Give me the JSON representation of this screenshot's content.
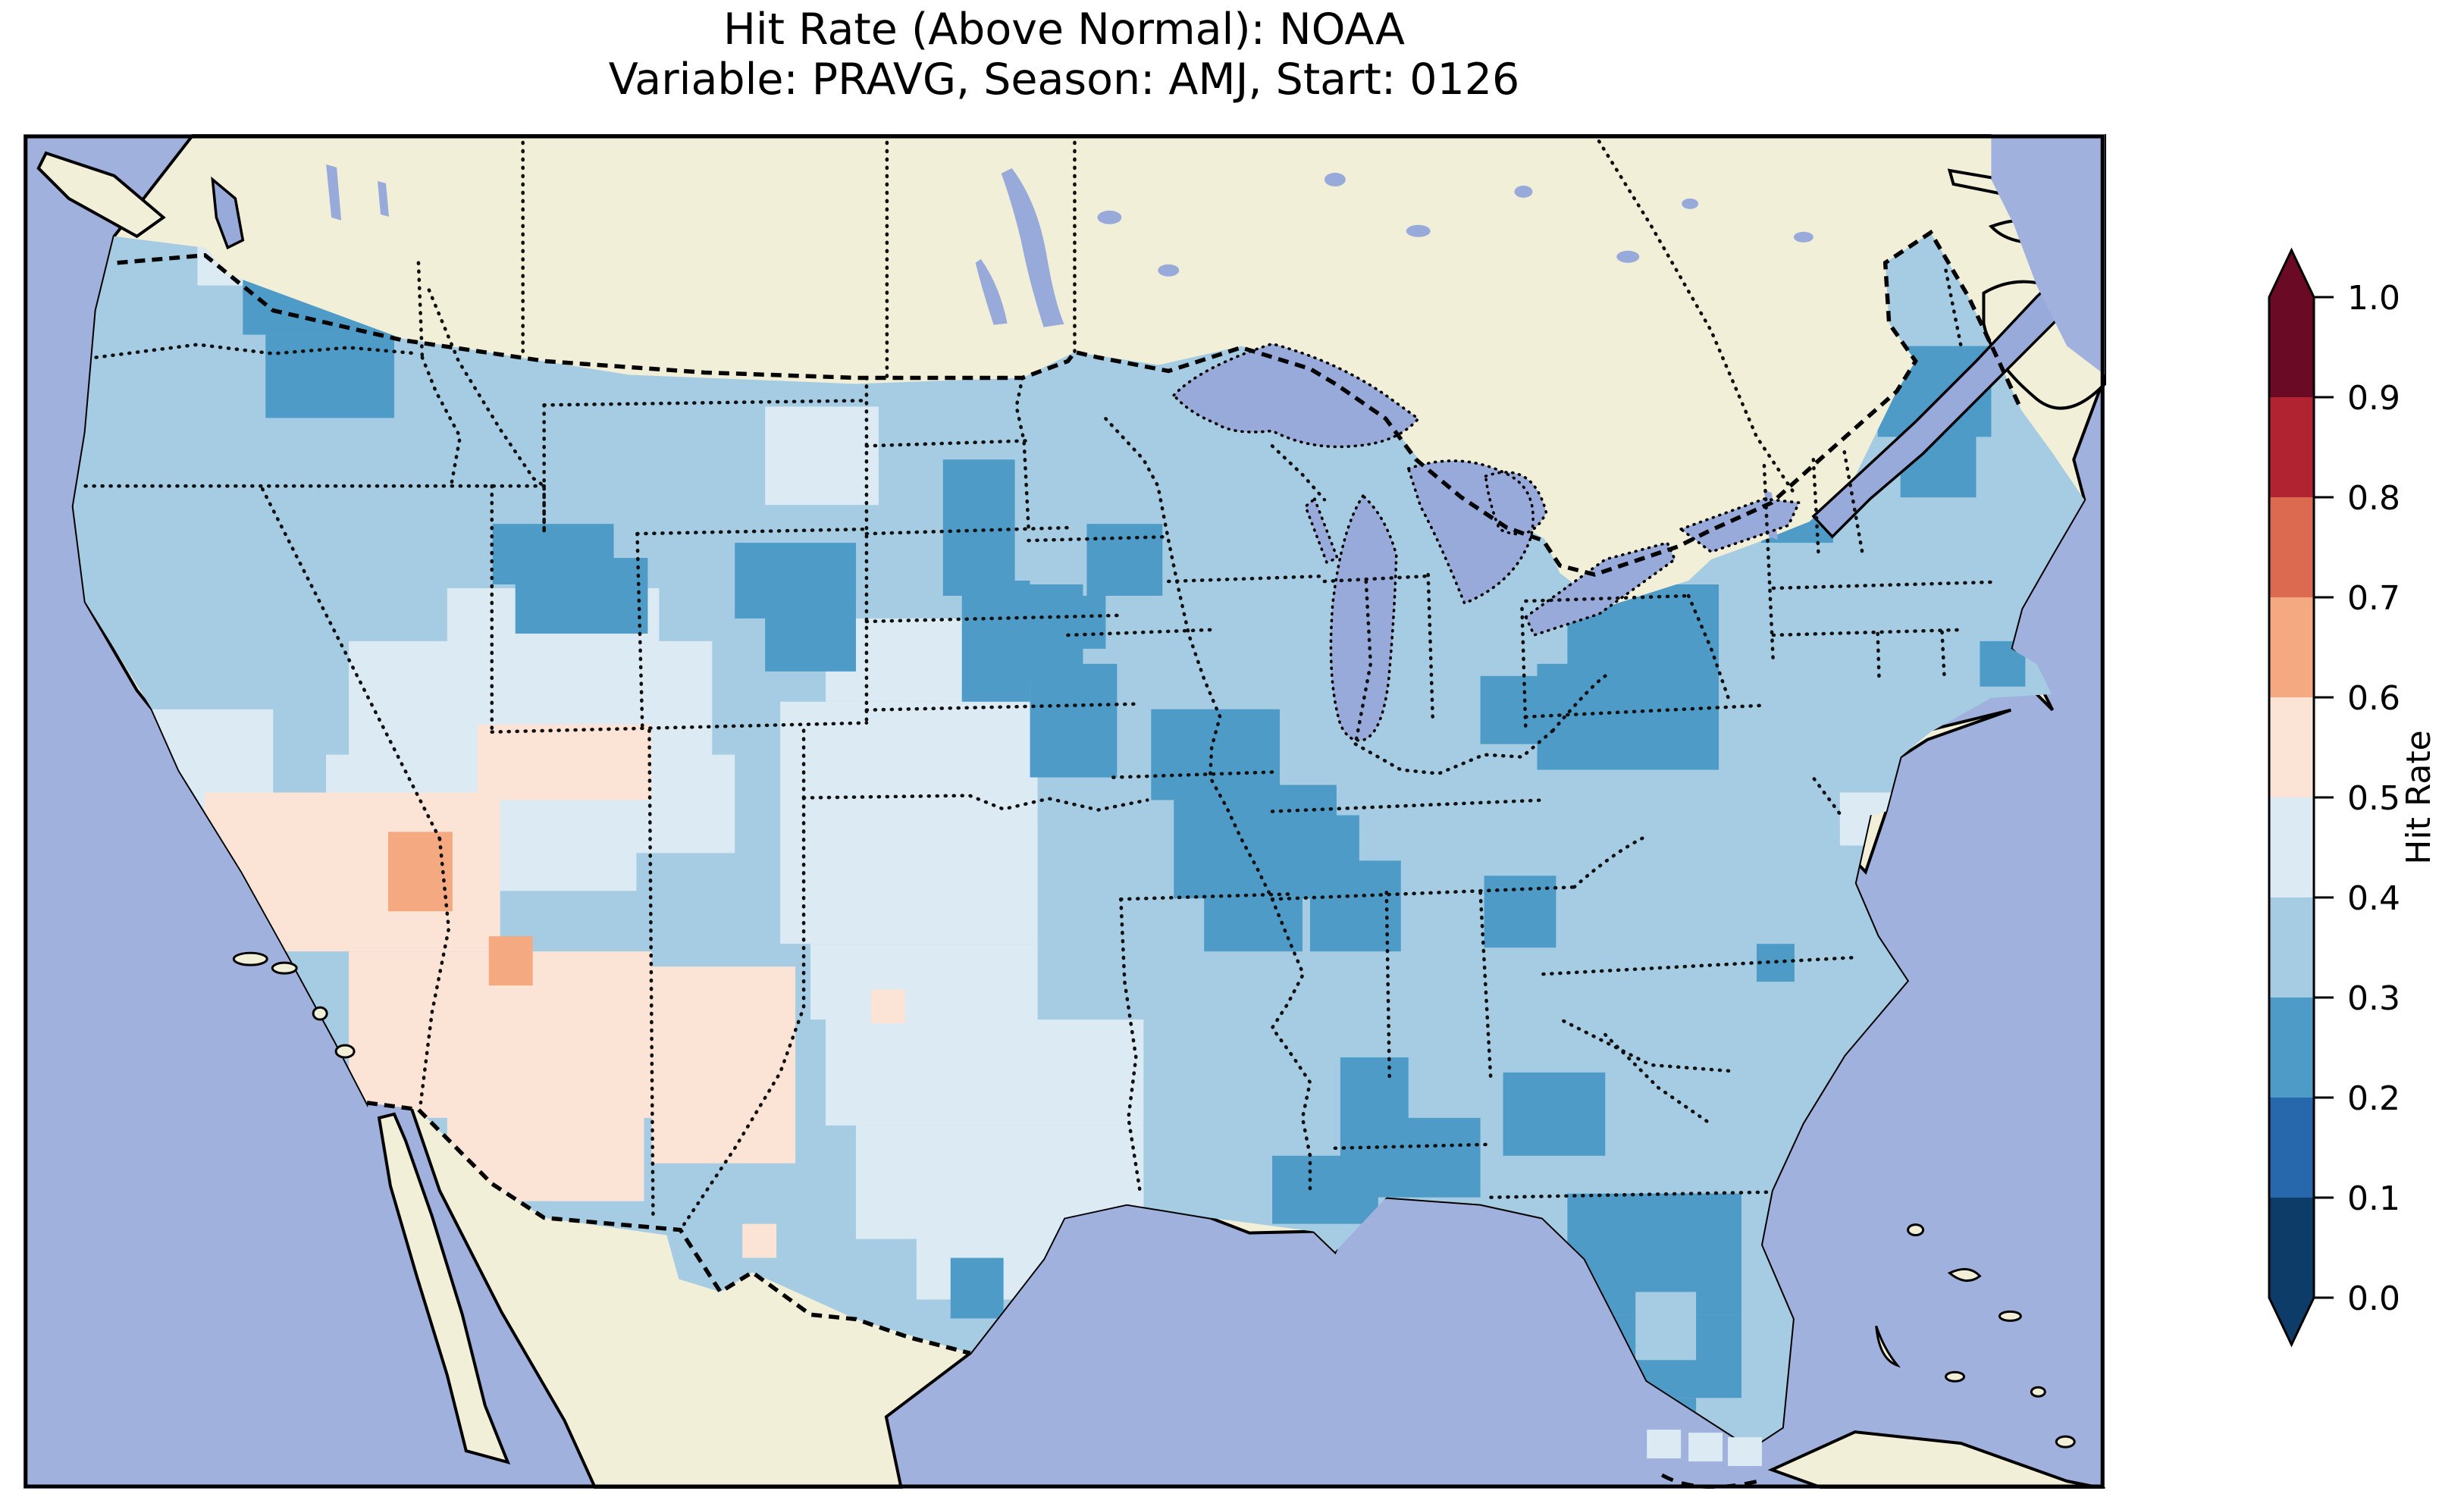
{
  "title": {
    "line1": "Hit Rate (Above Normal): NOAA",
    "line2": "Variable: PRAVG, Season: AMJ, Start: 0126"
  },
  "colorbar": {
    "label": "Hit Rate",
    "ticks": [
      "0.0",
      "0.1",
      "0.2",
      "0.3",
      "0.4",
      "0.5",
      "0.6",
      "0.7",
      "0.8",
      "0.9",
      "1.0"
    ],
    "bins": [
      {
        "range": "0.0-0.1",
        "color": "#0e3c69"
      },
      {
        "range": "0.1-0.2",
        "color": "#2767ab"
      },
      {
        "range": "0.2-0.3",
        "color": "#4e9bc8"
      },
      {
        "range": "0.3-0.4",
        "color": "#a5cce2"
      },
      {
        "range": "0.4-0.5",
        "color": "#dcebf3"
      },
      {
        "range": "0.5-0.6",
        "color": "#fbe3d5"
      },
      {
        "range": "0.6-0.7",
        "color": "#f4a981"
      },
      {
        "range": "0.7-0.8",
        "color": "#dc6a51"
      },
      {
        "range": "0.8-0.9",
        "color": "#b22331"
      },
      {
        "range": "0.9-1.0",
        "color": "#6b0a24"
      }
    ],
    "over_color": "#6b0a24",
    "under_color": "#0e3c69"
  },
  "map_colors": {
    "ocean": "#9fb1dc",
    "land": "#f1efd8",
    "lake": "#98aada",
    "coastline": "#000000"
  },
  "chart_data": {
    "type": "heatmap",
    "title": "Hit Rate (Above Normal): NOAA",
    "variable": "PRAVG",
    "season": "AMJ",
    "start": "0126",
    "value_field": "Hit Rate",
    "bin_edges": [
      0.0,
      0.1,
      0.2,
      0.3,
      0.4,
      0.5,
      0.6,
      0.7,
      0.8,
      0.9,
      1.0
    ],
    "legend_position": "right",
    "extent_note": "Contiguous United States, gridded ~1-degree cells",
    "regions": [
      {
        "bin": 3,
        "value": "0.3-0.4",
        "base": true,
        "rects": [
          [
            0,
            0,
            2750,
            1790
          ]
        ]
      },
      {
        "bin": 4,
        "value": "0.4-0.5",
        "rects": [
          [
            560,
            600,
            280,
            80
          ],
          [
            430,
            670,
            480,
            160
          ],
          [
            400,
            820,
            540,
            130
          ],
          [
            480,
            940,
            330,
            60
          ],
          [
            980,
            360,
            150,
            130
          ],
          [
            170,
            760,
            160,
            220
          ],
          [
            210,
            980,
            140,
            100
          ],
          [
            1060,
            640,
            280,
            110
          ],
          [
            1000,
            750,
            340,
            150
          ],
          [
            1000,
            900,
            340,
            170
          ],
          [
            1040,
            1070,
            300,
            100
          ],
          [
            1060,
            1170,
            420,
            140
          ],
          [
            1100,
            1310,
            380,
            150
          ],
          [
            1180,
            1460,
            220,
            80
          ],
          [
            1390,
            1380,
            90,
            60
          ],
          [
            2400,
            870,
            80,
            70
          ],
          [
            230,
            140,
            70,
            60
          ]
        ]
      },
      {
        "bin": 5,
        "value": "0.5-0.6",
        "rects": [
          [
            600,
            780,
            230,
            100
          ],
          [
            240,
            870,
            390,
            210
          ],
          [
            430,
            1080,
            400,
            220
          ],
          [
            560,
            1290,
            260,
            120
          ],
          [
            830,
            1100,
            190,
            260
          ],
          [
            150,
            1000,
            90,
            80
          ],
          [
            1120,
            1130,
            45,
            45
          ],
          [
            950,
            1440,
            45,
            45
          ]
        ]
      },
      {
        "bin": 6,
        "value": "0.6-0.7",
        "rects": [
          [
            482,
            922,
            85,
            105
          ],
          [
            615,
            1060,
            58,
            65
          ]
        ]
      },
      {
        "bin": 2,
        "value": "0.2-0.3",
        "rects": [
          [
            290,
            135,
            230,
            130
          ],
          [
            320,
            265,
            170,
            110
          ],
          [
            620,
            515,
            160,
            80
          ],
          [
            650,
            560,
            175,
            100
          ],
          [
            940,
            540,
            160,
            100
          ],
          [
            980,
            620,
            120,
            90
          ],
          [
            1215,
            430,
            95,
            180
          ],
          [
            1240,
            590,
            90,
            160
          ],
          [
            1405,
            515,
            100,
            95
          ],
          [
            1310,
            595,
            90,
            130
          ],
          [
            1330,
            700,
            115,
            150
          ],
          [
            1490,
            760,
            170,
            120
          ],
          [
            1520,
            860,
            215,
            150
          ],
          [
            1560,
            1000,
            130,
            80
          ],
          [
            1655,
            900,
            110,
            90
          ],
          [
            1700,
            960,
            120,
            120
          ],
          [
            1930,
            980,
            95,
            95
          ],
          [
            1740,
            1220,
            90,
            185
          ],
          [
            1820,
            1300,
            105,
            105
          ],
          [
            1955,
            1240,
            135,
            110
          ],
          [
            2040,
            1400,
            230,
            160
          ],
          [
            2060,
            1560,
            210,
            110
          ],
          [
            2090,
            1670,
            120,
            50
          ],
          [
            2040,
            595,
            200,
            130
          ],
          [
            2000,
            700,
            240,
            140
          ],
          [
            1925,
            716,
            115,
            90
          ],
          [
            2296,
            455,
            95,
            85
          ],
          [
            2450,
            280,
            150,
            120
          ],
          [
            2480,
            395,
            100,
            85
          ],
          [
            2585,
            670,
            60,
            60
          ],
          [
            2290,
            1070,
            50,
            50
          ],
          [
            1225,
            1485,
            70,
            80
          ],
          [
            1650,
            1350,
            140,
            90
          ],
          [
            1370,
            610,
            60,
            70
          ]
        ]
      },
      {
        "bin": 3,
        "value": "0.3-0.4",
        "rects": [
          [
            2130,
            1530,
            80,
            90
          ],
          [
            2120,
            1700,
            110,
            45
          ]
        ]
      },
      {
        "bin": 4,
        "value": "0.4-0.5",
        "noclip": true,
        "rects": [
          [
            2145,
            1712,
            45,
            38
          ],
          [
            2200,
            1716,
            45,
            38
          ],
          [
            2252,
            1722,
            45,
            38
          ]
        ]
      }
    ]
  }
}
